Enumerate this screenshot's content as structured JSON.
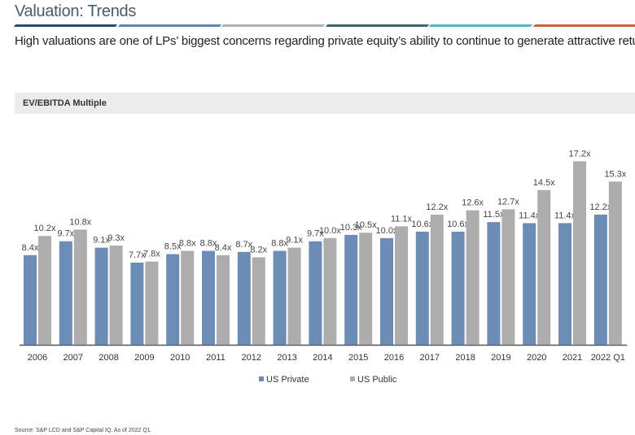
{
  "header": {
    "title": "Valuation: Trends",
    "subtitle": "High valuations are one of LPs’ biggest concerns regarding private equity’s ability to continue to generate attractive returns",
    "rule_colors": [
      "#2e4a6b",
      "#5b86b8",
      "#b0b0b0",
      "#3f6670",
      "#5bb3c4",
      "#c8643c"
    ]
  },
  "chart_data": {
    "type": "bar",
    "title": "EV/EBITDA Multiple",
    "categories": [
      "2006",
      "2007",
      "2008",
      "2009",
      "2010",
      "2011",
      "2012",
      "2013",
      "2014",
      "2015",
      "2016",
      "2017",
      "2018",
      "2019",
      "2020",
      "2021",
      "2022 Q1"
    ],
    "series": [
      {
        "name": "US Private",
        "color": "#6b8cb5",
        "values": [
          8.4,
          9.7,
          9.1,
          7.7,
          8.5,
          8.8,
          8.7,
          8.8,
          9.7,
          10.3,
          10.0,
          10.6,
          10.6,
          11.5,
          11.4,
          11.4,
          12.2
        ]
      },
      {
        "name": "US Public",
        "color": "#adadad",
        "values": [
          10.2,
          10.8,
          9.3,
          7.8,
          8.8,
          8.4,
          8.2,
          9.1,
          10.0,
          10.5,
          11.1,
          12.2,
          12.6,
          12.7,
          14.5,
          17.2,
          15.3
        ]
      }
    ],
    "label_suffix": "x",
    "ylim": [
      0,
      17.2
    ],
    "legend": "bottom",
    "grid": false
  },
  "footer": {
    "source": "Source: S&P LCD and S&P Capital IQ. As of 2022 Q1."
  }
}
